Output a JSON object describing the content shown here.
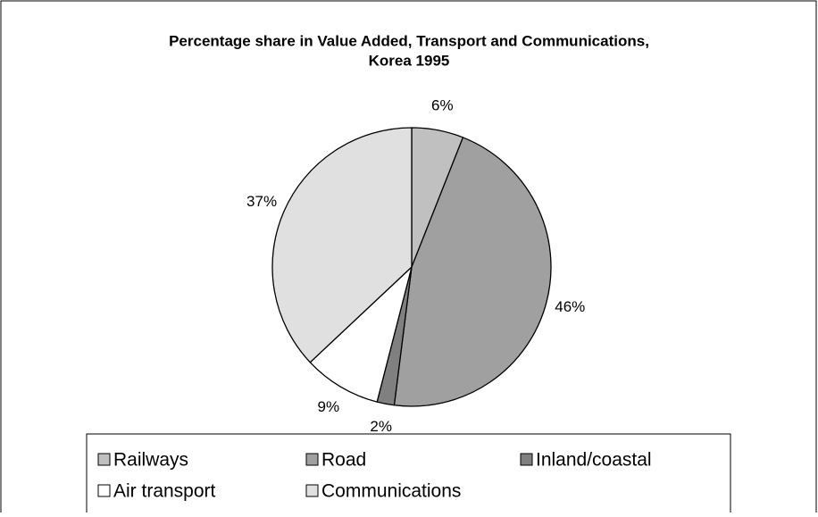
{
  "chart_data": {
    "type": "pie",
    "title": [
      "Percentage share in Value Added, Transport and Communications,",
      "Korea 1995"
    ],
    "categories": [
      "Railways",
      "Road",
      "Inland/coastal",
      "Air transport",
      "Communications"
    ],
    "values": [
      6,
      46,
      2,
      9,
      37
    ],
    "value_labels": [
      "6%",
      "46%",
      "2%",
      "9%",
      "37%"
    ],
    "colors": [
      "#c0c0c0",
      "#a0a0a0",
      "#808080",
      "#ffffff",
      "#e0e0e0"
    ],
    "legend": "bottom"
  }
}
